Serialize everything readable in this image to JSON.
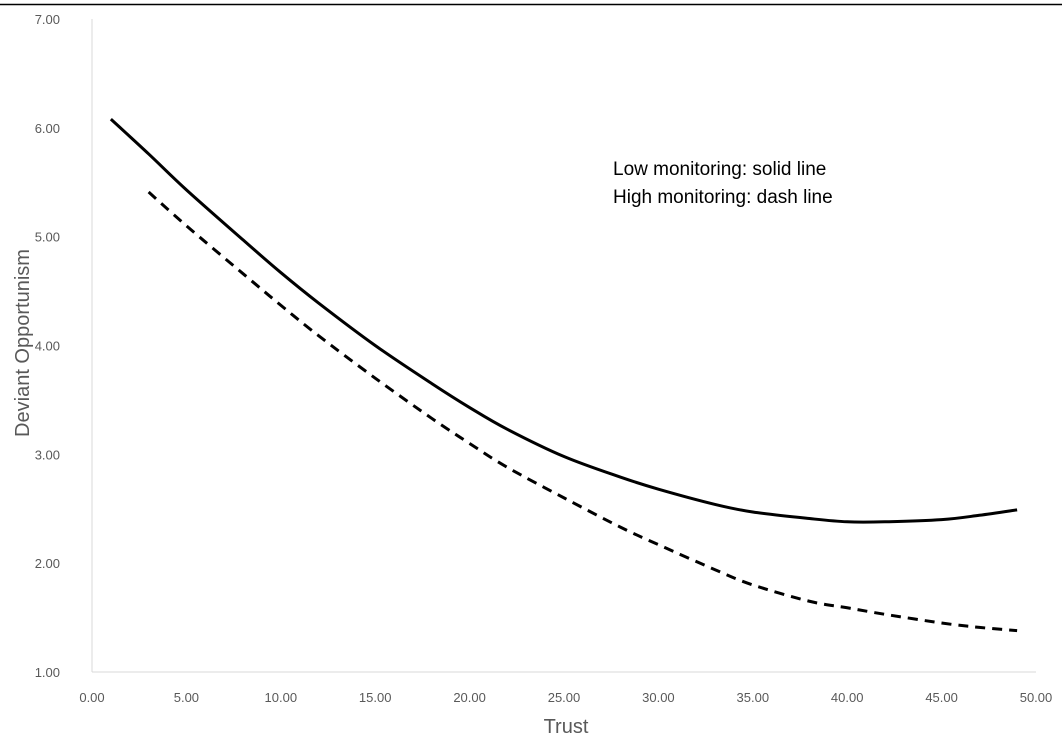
{
  "chart_data": {
    "type": "line",
    "title": "",
    "xlabel": "Trust",
    "ylabel": "Deviant Opportunism",
    "xlim": [
      0,
      50
    ],
    "ylim": [
      1,
      7
    ],
    "x_ticks": [
      "0.00",
      "5.00",
      "10.00",
      "15.00",
      "20.00",
      "25.00",
      "30.00",
      "35.00",
      "40.00",
      "45.00",
      "50.00"
    ],
    "y_ticks": [
      "1.00",
      "2.00",
      "3.00",
      "4.00",
      "5.00",
      "6.00",
      "7.00"
    ],
    "grid": false,
    "legend": "none",
    "annotations": [
      "Low monitoring: solid line",
      "High monitoring: dash line"
    ],
    "series": [
      {
        "style": "solid",
        "color": "#000000",
        "x": [
          1,
          3,
          5,
          8,
          10,
          12,
          15,
          18,
          20,
          22,
          25,
          28,
          30,
          33,
          35,
          38,
          40,
          42,
          45,
          47,
          49
        ],
        "y": [
          6.08,
          5.76,
          5.43,
          4.97,
          4.67,
          4.39,
          4.0,
          3.65,
          3.43,
          3.23,
          2.98,
          2.79,
          2.68,
          2.54,
          2.47,
          2.41,
          2.38,
          2.38,
          2.4,
          2.44,
          2.49
        ]
      },
      {
        "style": "dashed",
        "color": "#000000",
        "x": [
          3,
          5,
          8,
          10,
          12,
          15,
          18,
          20,
          22,
          25,
          28,
          30,
          33,
          35,
          38,
          40,
          42,
          45,
          47,
          49
        ],
        "y": [
          5.41,
          5.1,
          4.66,
          4.37,
          4.09,
          3.7,
          3.33,
          3.1,
          2.88,
          2.6,
          2.33,
          2.17,
          1.94,
          1.8,
          1.65,
          1.59,
          1.53,
          1.45,
          1.41,
          1.38
        ]
      }
    ]
  }
}
